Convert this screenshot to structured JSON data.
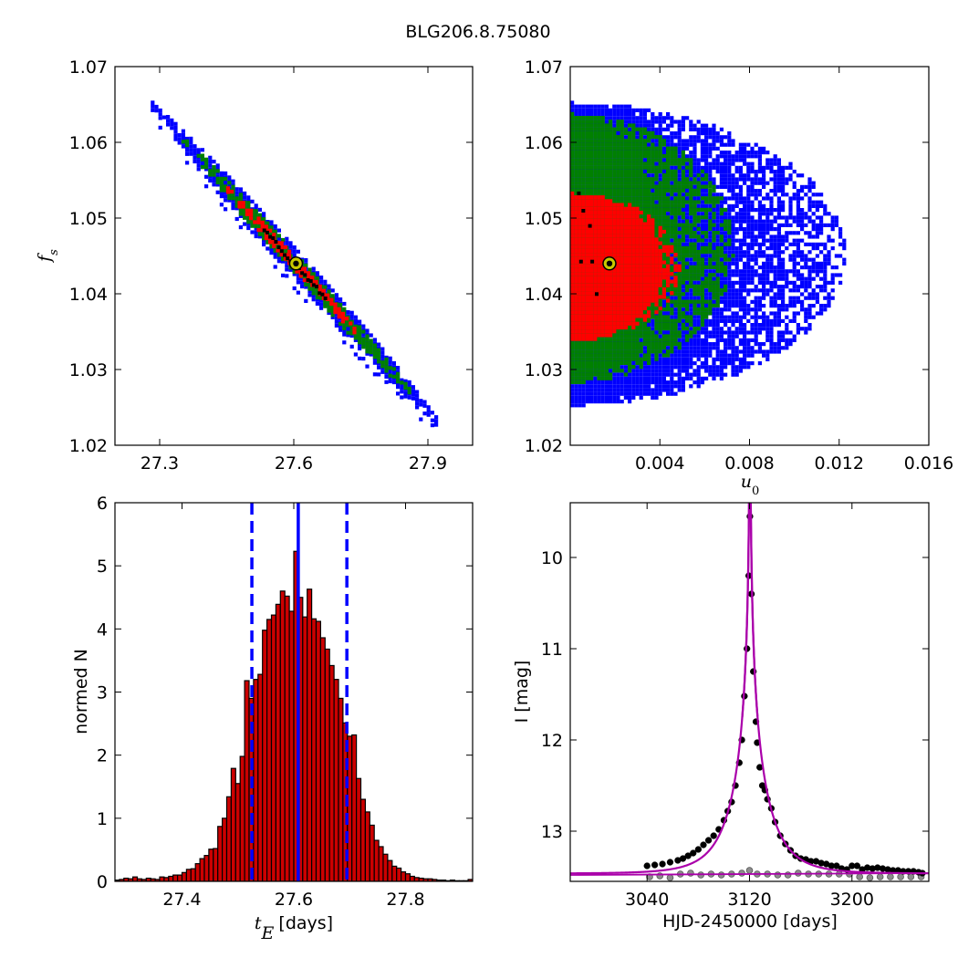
{
  "figure": {
    "title": "BLG206.8.75080"
  },
  "colors": {
    "sigma1": "#ff0000",
    "sigma2": "#008000",
    "sigma3": "#0000ff",
    "mcmc_core": "#000000",
    "best_fit_marker": "#c8c800",
    "hist_bar": "#cc0000",
    "vline": "#0000ff",
    "model_curve": "#aa00aa",
    "data_main": "#000000",
    "data_residual": "#8c8c8c"
  },
  "chart_data": [
    {
      "id": "fs-vs-tE",
      "type": "heatmap",
      "xlabel": "",
      "ylabel": "f_s",
      "xlim": [
        27.2,
        28.0
      ],
      "ylim": [
        1.02,
        1.07
      ],
      "xticks": [
        "27.3",
        "27.6",
        "27.9"
      ],
      "xtick_values": [
        27.3,
        27.6,
        27.9
      ],
      "yticks": [
        "1.02",
        "1.03",
        "1.04",
        "1.05",
        "1.06",
        "1.07"
      ],
      "ytick_values": [
        1.02,
        1.03,
        1.04,
        1.05,
        1.06,
        1.07
      ],
      "relation": {
        "slope": -0.0655,
        "intercept_at": [
          27.6,
          1.044
        ]
      },
      "contours": [
        {
          "level": "3sigma",
          "color": "blue",
          "x_range": [
            27.28,
            27.92
          ],
          "half_width_fs": 0.0022
        },
        {
          "level": "2sigma",
          "color": "green",
          "x_range": [
            27.34,
            27.86
          ],
          "half_width_fs": 0.0015
        },
        {
          "level": "1sigma",
          "color": "red",
          "x_range": [
            27.44,
            27.74
          ],
          "half_width_fs": 0.0009
        }
      ],
      "best_fit": {
        "x": 27.605,
        "y": 1.044
      }
    },
    {
      "id": "fs-vs-u0",
      "type": "heatmap",
      "xlabel": "u_0",
      "ylabel": "",
      "xlim": [
        0.0,
        0.016
      ],
      "ylim": [
        1.02,
        1.07
      ],
      "xticks": [
        "0.004",
        "0.008",
        "0.012",
        "0.016"
      ],
      "xtick_values": [
        0.004,
        0.008,
        0.012,
        0.016
      ],
      "yticks": [
        "1.02",
        "1.03",
        "1.04",
        "1.05",
        "1.06",
        "1.07"
      ],
      "ytick_values": [
        1.02,
        1.03,
        1.04,
        1.05,
        1.06,
        1.07
      ],
      "contours": [
        {
          "level": "3sigma",
          "color": "blue",
          "u0_max": 0.0122,
          "fs_range": [
            1.0255,
            1.0655
          ]
        },
        {
          "level": "2sigma",
          "color": "green",
          "u0_max": 0.0072,
          "fs_range": [
            1.0285,
            1.064
          ]
        },
        {
          "level": "1sigma",
          "color": "red",
          "u0_max": 0.0048,
          "fs_range": [
            1.034,
            1.0535
          ]
        }
      ],
      "best_fit": {
        "x": 0.00175,
        "y": 1.044
      }
    },
    {
      "id": "tE-histogram",
      "type": "bar",
      "xlabel": "t_E [days]",
      "ylabel": "normed N",
      "xlim": [
        27.28,
        27.92
      ],
      "ylim": [
        0,
        6
      ],
      "xticks": [
        "27.4",
        "27.6",
        "27.8"
      ],
      "xtick_values": [
        27.4,
        27.6,
        27.8
      ],
      "yticks": [
        "0",
        "1",
        "2",
        "3",
        "4",
        "5",
        "6"
      ],
      "ytick_values": [
        0,
        1,
        2,
        3,
        4,
        5,
        6
      ],
      "bin_start": 27.28,
      "bin_width": 0.008,
      "values": [
        0.02,
        0.03,
        0.05,
        0.04,
        0.07,
        0.04,
        0.03,
        0.05,
        0.04,
        0.03,
        0.07,
        0.06,
        0.08,
        0.1,
        0.1,
        0.14,
        0.19,
        0.2,
        0.28,
        0.36,
        0.41,
        0.51,
        0.52,
        0.87,
        1.0,
        1.34,
        1.79,
        1.55,
        1.98,
        3.18,
        2.9,
        3.2,
        3.28,
        3.98,
        4.15,
        4.22,
        4.39,
        4.6,
        4.52,
        4.28,
        5.23,
        4.5,
        4.19,
        4.63,
        4.16,
        4.12,
        3.86,
        3.68,
        3.42,
        3.2,
        2.9,
        2.51,
        2.3,
        2.32,
        1.63,
        1.3,
        1.1,
        0.89,
        0.65,
        0.55,
        0.43,
        0.33,
        0.24,
        0.21,
        0.15,
        0.12,
        0.08,
        0.06,
        0.05,
        0.04,
        0.04,
        0.03,
        0.02,
        0.02,
        0.01,
        0.02,
        0.01,
        0.01,
        0.01,
        0.03
      ],
      "vlines": [
        {
          "x": 27.525,
          "style": "dashed"
        },
        {
          "x": 27.608,
          "style": "solid"
        },
        {
          "x": 27.695,
          "style": "dashed"
        }
      ]
    },
    {
      "id": "light-curve",
      "type": "scatter",
      "xlabel": "HJD-2450000 [days]",
      "ylabel": "I [mag]",
      "xlim": [
        2980,
        3260
      ],
      "ylim": [
        13.55,
        9.4
      ],
      "y_inverted": true,
      "xticks": [
        "3040",
        "3120",
        "3200"
      ],
      "xtick_values": [
        3040,
        3120,
        3200
      ],
      "yticks": [
        "10",
        "11",
        "12",
        "13"
      ],
      "ytick_values": [
        10,
        11,
        12,
        13
      ],
      "model": {
        "t0": 3120.3,
        "tE": 27.6,
        "u0": 0.00175,
        "fs": 1.044,
        "baseline_mag": 13.465,
        "points": 560
      },
      "series": [
        {
          "color": "black",
          "x": [
            3040,
            3046,
            3052,
            3058,
            3064,
            3068,
            3072,
            3076,
            3080,
            3084,
            3088,
            3092,
            3096,
            3100,
            3103,
            3106,
            3109,
            3112,
            3114,
            3116,
            3118,
            3119.4,
            3120.3,
            3121.5,
            3123,
            3125,
            3126,
            3128,
            3130,
            3132,
            3134,
            3137,
            3140,
            3144,
            3148,
            3152,
            3156,
            3160,
            3164,
            3168,
            3172,
            3176,
            3180,
            3184,
            3188,
            3192,
            3196,
            3200,
            3204,
            3208,
            3212,
            3216,
            3220,
            3224,
            3228,
            3232,
            3236,
            3240,
            3244,
            3248,
            3252,
            3255
          ],
          "y": [
            13.38,
            13.37,
            13.36,
            13.34,
            13.32,
            13.3,
            13.27,
            13.24,
            13.2,
            13.15,
            13.1,
            13.05,
            12.98,
            12.88,
            12.78,
            12.68,
            12.5,
            12.25,
            12.0,
            11.52,
            11.0,
            10.2,
            9.55,
            10.4,
            11.25,
            11.8,
            12.03,
            12.3,
            12.5,
            12.55,
            12.65,
            12.75,
            12.9,
            13.05,
            13.14,
            13.21,
            13.27,
            13.3,
            13.31,
            13.33,
            13.33,
            13.35,
            13.36,
            13.38,
            13.38,
            13.41,
            13.42,
            13.38,
            13.38,
            13.42,
            13.4,
            13.41,
            13.4,
            13.41,
            13.42,
            13.43,
            13.43,
            13.44,
            13.44,
            13.44,
            13.45,
            13.46
          ]
        },
        {
          "color": "gray",
          "x": [
            3042,
            3050,
            3058,
            3066,
            3074,
            3082,
            3090,
            3098,
            3106,
            3114,
            3120,
            3126,
            3134,
            3142,
            3150,
            3158,
            3166,
            3174,
            3182,
            3190,
            3198,
            3206,
            3214,
            3222,
            3230,
            3238,
            3246,
            3254
          ],
          "y": [
            13.5,
            13.49,
            13.51,
            13.47,
            13.46,
            13.48,
            13.47,
            13.48,
            13.47,
            13.46,
            13.43,
            13.47,
            13.47,
            13.48,
            13.48,
            13.46,
            13.47,
            13.47,
            13.47,
            13.47,
            13.47,
            13.5,
            13.51,
            13.5,
            13.5,
            13.5,
            13.5,
            13.5
          ]
        }
      ]
    }
  ]
}
